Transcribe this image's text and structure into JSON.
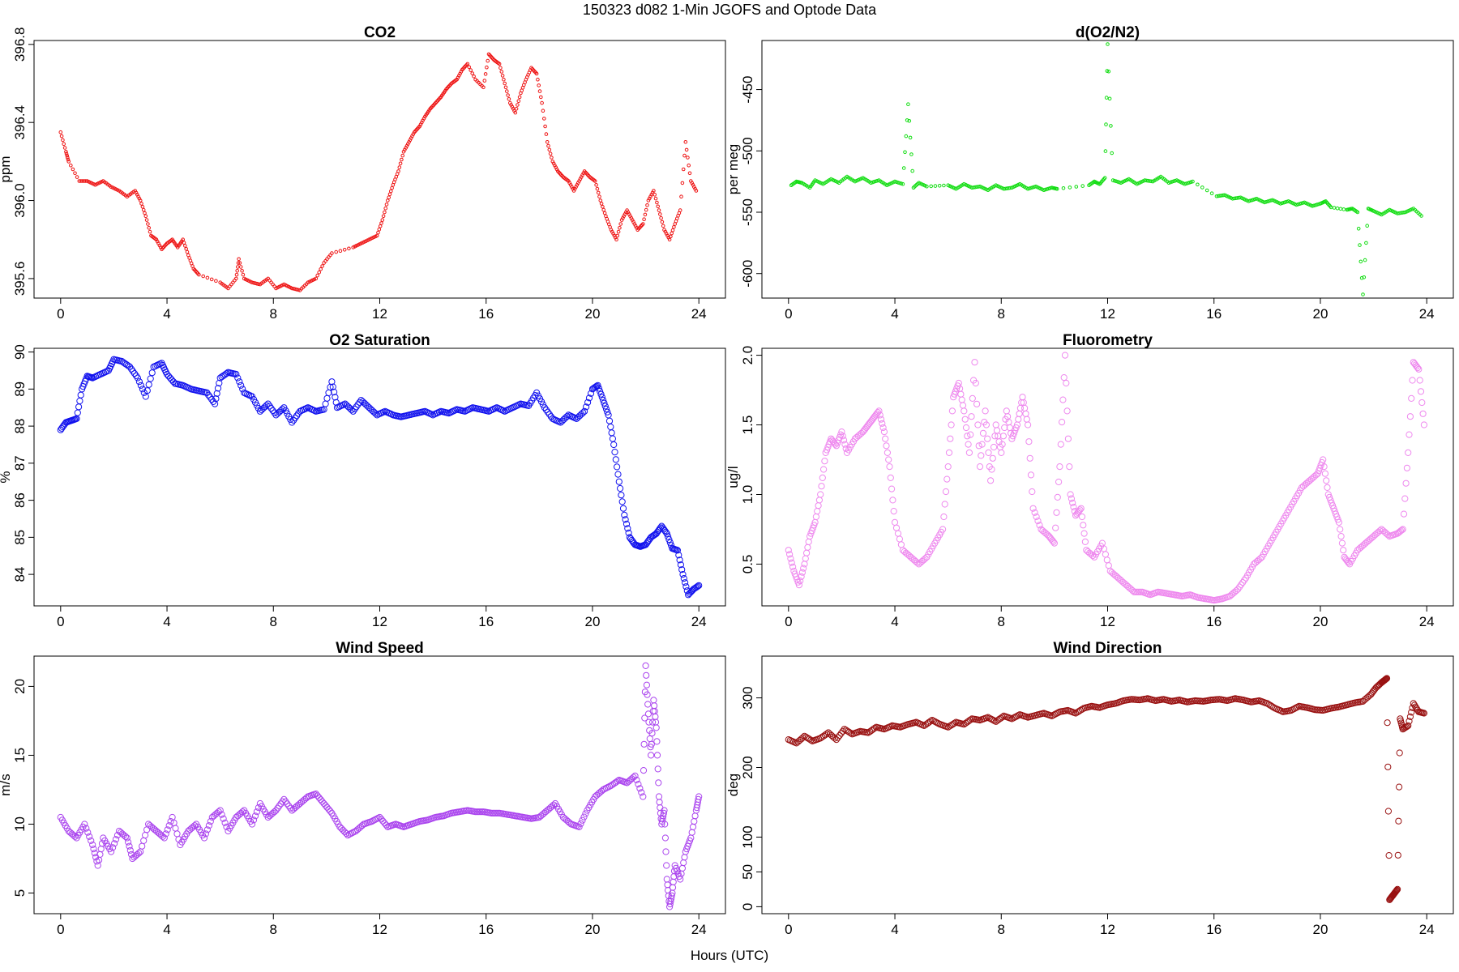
{
  "suptitle": "150323   d082   1-Min  JGOFS and Optode Data",
  "xlabel": "Hours (UTC)",
  "chart_data": [
    {
      "type": "scatter",
      "title": "CO2",
      "xlabel": "",
      "ylabel": "ppm",
      "color": "#ee1111",
      "xlim": [
        -1,
        25
      ],
      "ylim": [
        395.5,
        396.82
      ],
      "xticks": [
        "0",
        "4",
        "8",
        "12",
        "16",
        "20",
        "24"
      ],
      "yticks": [
        "395.6",
        "396.0",
        "396.4",
        "396.8"
      ],
      "x": [
        0.0,
        0.2,
        0.3,
        0.7,
        1.0,
        1.3,
        1.6,
        1.9,
        2.2,
        2.5,
        2.8,
        3.0,
        3.2,
        3.4,
        3.6,
        3.8,
        4.0,
        4.2,
        4.4,
        4.6,
        4.8,
        5.0,
        5.2,
        6.0,
        6.3,
        6.6,
        6.7,
        6.9,
        7.2,
        7.5,
        7.8,
        8.1,
        8.4,
        8.7,
        9.0,
        9.3,
        9.6,
        9.9,
        10.2,
        11.0,
        11.3,
        11.6,
        11.9,
        12.1,
        12.3,
        12.5,
        12.7,
        12.9,
        13.1,
        13.3,
        13.5,
        13.7,
        13.9,
        14.1,
        14.3,
        14.5,
        14.7,
        14.9,
        15.1,
        15.3,
        15.6,
        15.9,
        16.1,
        16.3,
        16.5,
        16.7,
        16.9,
        17.1,
        17.3,
        17.5,
        17.7,
        17.9,
        18.1,
        18.3,
        18.5,
        18.7,
        18.9,
        19.1,
        19.3,
        19.5,
        19.7,
        19.9,
        20.1,
        20.3,
        20.5,
        20.7,
        20.9,
        21.1,
        21.3,
        21.5,
        21.7,
        21.9,
        22.1,
        22.3,
        22.5,
        22.7,
        22.9,
        23.1,
        23.3,
        23.5,
        23.7,
        23.9
      ],
      "y": [
        396.35,
        396.25,
        396.2,
        396.1,
        396.1,
        396.08,
        396.1,
        396.07,
        396.05,
        396.02,
        396.05,
        396.0,
        395.92,
        395.82,
        395.8,
        395.75,
        395.78,
        395.8,
        395.76,
        395.8,
        395.72,
        395.65,
        395.62,
        395.58,
        395.55,
        395.6,
        395.7,
        395.6,
        395.58,
        395.57,
        395.6,
        395.55,
        395.57,
        395.55,
        395.54,
        395.58,
        395.6,
        395.68,
        395.73,
        395.76,
        395.78,
        395.8,
        395.82,
        395.9,
        396.0,
        396.08,
        396.15,
        396.25,
        396.3,
        396.35,
        396.38,
        396.43,
        396.47,
        396.5,
        396.53,
        396.57,
        396.6,
        396.62,
        396.67,
        396.7,
        396.62,
        396.58,
        396.75,
        396.72,
        396.7,
        396.6,
        396.5,
        396.45,
        396.55,
        396.62,
        396.68,
        396.65,
        396.5,
        396.3,
        396.2,
        396.15,
        396.12,
        396.1,
        396.05,
        396.1,
        396.15,
        396.12,
        396.1,
        396.0,
        395.92,
        395.85,
        395.8,
        395.9,
        395.95,
        395.9,
        395.85,
        395.88,
        396.0,
        396.05,
        395.95,
        395.85,
        395.8,
        395.88,
        395.95,
        396.3,
        396.1,
        396.05
      ]
    },
    {
      "type": "scatter",
      "title": "d(O2/N2)",
      "xlabel": "",
      "ylabel": "per meg",
      "color": "#11dd11",
      "xlim": [
        -1,
        25
      ],
      "ylim": [
        -620,
        -410
      ],
      "xticks": [
        "0",
        "4",
        "8",
        "12",
        "16",
        "20",
        "24"
      ],
      "yticks": [
        "-450",
        "-500",
        "-550",
        "-600"
      ],
      "x": [
        0.1,
        0.3,
        0.5,
        0.8,
        1.0,
        1.3,
        1.6,
        1.9,
        2.2,
        2.5,
        2.8,
        3.1,
        3.4,
        3.7,
        4.0,
        4.3,
        4.5,
        4.7,
        4.9,
        5.2,
        6.0,
        6.3,
        6.6,
        6.9,
        7.2,
        7.5,
        7.8,
        8.1,
        8.4,
        8.7,
        9.0,
        9.3,
        9.6,
        9.9,
        10.1,
        11.3,
        11.5,
        11.7,
        11.9,
        12.0,
        12.2,
        12.5,
        12.8,
        13.1,
        13.4,
        13.7,
        14.0,
        14.3,
        14.6,
        14.9,
        15.2,
        16.1,
        16.4,
        16.7,
        17.0,
        17.3,
        17.6,
        17.9,
        18.2,
        18.5,
        18.8,
        19.1,
        19.4,
        19.7,
        20.0,
        20.2,
        20.4,
        21.0,
        21.2,
        21.4,
        21.6,
        21.8,
        22.0,
        22.3,
        22.6,
        22.9,
        23.2,
        23.5,
        23.8
      ],
      "y": [
        -528,
        -525,
        -526,
        -530,
        -524,
        -527,
        -523,
        -526,
        -521,
        -525,
        -522,
        -526,
        -524,
        -528,
        -525,
        -527,
        -462,
        -530,
        -526,
        -529,
        -528,
        -531,
        -527,
        -530,
        -529,
        -532,
        -528,
        -531,
        -530,
        -527,
        -531,
        -529,
        -532,
        -530,
        -531,
        -528,
        -525,
        -527,
        -522,
        -413,
        -524,
        -526,
        -523,
        -527,
        -524,
        -525,
        -521,
        -526,
        -524,
        -527,
        -525,
        -537,
        -536,
        -539,
        -538,
        -541,
        -539,
        -542,
        -540,
        -543,
        -541,
        -544,
        -542,
        -545,
        -543,
        -541,
        -546,
        -548,
        -547,
        -550,
        -617,
        -547,
        -549,
        -552,
        -548,
        -551,
        -550,
        -547,
        -553
      ]
    },
    {
      "type": "scatter",
      "title": "O2 Saturation",
      "xlabel": "",
      "ylabel": "%",
      "color": "#1111ee",
      "xlim": [
        -1,
        25
      ],
      "ylim": [
        83.15,
        90.1
      ],
      "xticks": [
        "0",
        "4",
        "8",
        "12",
        "16",
        "20",
        "24"
      ],
      "yticks": [
        "84",
        "85",
        "86",
        "87",
        "88",
        "89",
        "90"
      ],
      "x": [
        0.0,
        0.2,
        0.4,
        0.6,
        0.8,
        1.0,
        1.2,
        1.5,
        1.8,
        2.0,
        2.3,
        2.6,
        2.9,
        3.2,
        3.5,
        3.8,
        4.0,
        4.3,
        4.6,
        4.9,
        5.2,
        5.5,
        5.8,
        6.0,
        6.3,
        6.6,
        6.9,
        7.2,
        7.5,
        7.8,
        8.1,
        8.4,
        8.7,
        9.0,
        9.3,
        9.6,
        9.9,
        10.2,
        10.4,
        10.7,
        11.0,
        11.3,
        11.6,
        11.9,
        12.2,
        12.5,
        12.8,
        13.1,
        13.4,
        13.7,
        14.0,
        14.3,
        14.6,
        14.9,
        15.2,
        15.5,
        15.8,
        16.1,
        16.4,
        16.7,
        17.0,
        17.3,
        17.6,
        17.9,
        18.2,
        18.5,
        18.8,
        19.1,
        19.4,
        19.7,
        20.0,
        20.2,
        20.4,
        20.6,
        20.8,
        21.0,
        21.2,
        21.4,
        21.6,
        21.8,
        22.0,
        22.2,
        22.4,
        22.6,
        22.8,
        23.0,
        23.2,
        23.4,
        23.6,
        23.8,
        24.0
      ],
      "y": [
        87.9,
        88.1,
        88.15,
        88.2,
        89.0,
        89.35,
        89.3,
        89.4,
        89.5,
        89.8,
        89.75,
        89.6,
        89.3,
        88.8,
        89.6,
        89.7,
        89.4,
        89.15,
        89.1,
        89.0,
        88.95,
        88.9,
        88.6,
        89.3,
        89.45,
        89.4,
        88.9,
        88.8,
        88.4,
        88.6,
        88.3,
        88.5,
        88.1,
        88.4,
        88.5,
        88.4,
        88.45,
        89.2,
        88.5,
        88.6,
        88.4,
        88.7,
        88.5,
        88.3,
        88.4,
        88.3,
        88.25,
        88.3,
        88.35,
        88.4,
        88.3,
        88.4,
        88.35,
        88.45,
        88.4,
        88.5,
        88.45,
        88.4,
        88.5,
        88.4,
        88.5,
        88.6,
        88.55,
        88.9,
        88.5,
        88.2,
        88.1,
        88.3,
        88.2,
        88.4,
        89.0,
        89.1,
        88.7,
        88.3,
        87.5,
        86.5,
        85.6,
        85.0,
        84.8,
        84.75,
        84.8,
        85.0,
        85.1,
        85.3,
        85.1,
        84.7,
        84.65,
        84.0,
        83.45,
        83.6,
        83.7
      ]
    },
    {
      "type": "scatter",
      "title": "Fluorometry",
      "xlabel": "",
      "ylabel": "ug/l",
      "color": "#ee88ee",
      "xlim": [
        -1,
        25
      ],
      "ylim": [
        0.2,
        2.05
      ],
      "xticks": [
        "0",
        "4",
        "8",
        "12",
        "16",
        "20",
        "24"
      ],
      "yticks": [
        "0.5",
        "1.0",
        "1.5",
        "2.0"
      ],
      "x": [
        0.0,
        0.2,
        0.4,
        0.6,
        0.8,
        1.0,
        1.2,
        1.4,
        1.6,
        1.8,
        2.0,
        2.2,
        2.5,
        2.8,
        3.0,
        3.2,
        3.4,
        3.6,
        3.8,
        4.0,
        4.3,
        4.6,
        4.9,
        5.2,
        5.5,
        5.8,
        6.0,
        6.2,
        6.4,
        6.6,
        6.8,
        7.0,
        7.2,
        7.4,
        7.6,
        7.8,
        8.0,
        8.2,
        8.4,
        8.6,
        8.8,
        9.0,
        9.2,
        9.5,
        9.8,
        10.0,
        10.2,
        10.4,
        10.6,
        10.8,
        11.0,
        11.2,
        11.5,
        11.8,
        12.1,
        12.4,
        12.7,
        13.0,
        13.3,
        13.6,
        13.9,
        14.2,
        14.5,
        14.8,
        15.1,
        15.4,
        15.7,
        16.0,
        16.3,
        16.6,
        16.9,
        17.2,
        17.5,
        17.8,
        18.1,
        18.4,
        18.7,
        19.0,
        19.3,
        19.6,
        19.9,
        20.1,
        20.3,
        20.5,
        20.7,
        20.9,
        21.1,
        21.4,
        21.7,
        22.0,
        22.3,
        22.6,
        22.9,
        23.1,
        23.3,
        23.5,
        23.7,
        23.9
      ],
      "y": [
        0.6,
        0.45,
        0.35,
        0.5,
        0.7,
        0.8,
        1.0,
        1.3,
        1.4,
        1.35,
        1.45,
        1.3,
        1.4,
        1.45,
        1.5,
        1.55,
        1.6,
        1.45,
        1.2,
        0.8,
        0.6,
        0.55,
        0.5,
        0.55,
        0.65,
        0.75,
        1.2,
        1.7,
        1.8,
        1.6,
        1.3,
        1.95,
        1.2,
        1.6,
        1.1,
        1.5,
        1.3,
        1.6,
        1.4,
        1.5,
        1.7,
        1.5,
        0.9,
        0.75,
        0.7,
        0.65,
        1.2,
        2.0,
        1.0,
        0.85,
        0.9,
        0.6,
        0.55,
        0.65,
        0.45,
        0.4,
        0.35,
        0.3,
        0.3,
        0.28,
        0.3,
        0.29,
        0.28,
        0.27,
        0.28,
        0.26,
        0.25,
        0.24,
        0.25,
        0.27,
        0.32,
        0.4,
        0.5,
        0.55,
        0.65,
        0.75,
        0.85,
        0.95,
        1.05,
        1.1,
        1.15,
        1.25,
        1.0,
        0.9,
        0.8,
        0.55,
        0.5,
        0.6,
        0.65,
        0.7,
        0.75,
        0.7,
        0.72,
        0.75,
        1.3,
        1.95,
        1.9,
        1.5
      ]
    },
    {
      "type": "scatter",
      "title": "Wind Speed",
      "xlabel": "",
      "ylabel": "m/s",
      "color": "#aa44ee",
      "xlim": [
        -1,
        25
      ],
      "ylim": [
        3.5,
        22.2
      ],
      "xticks": [
        "0",
        "4",
        "8",
        "12",
        "16",
        "20",
        "24"
      ],
      "yticks": [
        "5",
        "10",
        "15",
        "20"
      ],
      "x": [
        0.0,
        0.3,
        0.6,
        0.9,
        1.2,
        1.4,
        1.6,
        1.9,
        2.2,
        2.5,
        2.7,
        3.0,
        3.3,
        3.6,
        3.9,
        4.2,
        4.5,
        4.8,
        5.1,
        5.4,
        5.7,
        6.0,
        6.3,
        6.6,
        6.9,
        7.2,
        7.5,
        7.8,
        8.1,
        8.4,
        8.7,
        9.0,
        9.3,
        9.6,
        9.9,
        10.2,
        10.5,
        10.8,
        11.1,
        11.4,
        11.7,
        12.0,
        12.3,
        12.6,
        12.9,
        13.2,
        13.5,
        13.8,
        14.1,
        14.4,
        14.7,
        15.0,
        15.3,
        15.6,
        15.9,
        16.2,
        16.5,
        16.8,
        17.1,
        17.4,
        17.7,
        18.0,
        18.3,
        18.6,
        18.9,
        19.2,
        19.5,
        19.8,
        20.1,
        20.4,
        20.7,
        21.0,
        21.3,
        21.6,
        21.9,
        22.0,
        22.1,
        22.2,
        22.3,
        22.4,
        22.5,
        22.6,
        22.7,
        22.8,
        22.9,
        23.0,
        23.1,
        23.3,
        23.5,
        23.7,
        23.9,
        24.0
      ],
      "y": [
        10.5,
        9.5,
        9.0,
        10.0,
        8.5,
        7.0,
        9.0,
        8.0,
        9.5,
        9.0,
        7.5,
        8.0,
        10.0,
        9.5,
        9.0,
        10.5,
        8.5,
        9.5,
        10.0,
        9.0,
        10.5,
        11.0,
        9.5,
        10.5,
        11.0,
        10.0,
        11.5,
        10.5,
        11.0,
        11.8,
        11.0,
        11.5,
        12.0,
        12.2,
        11.5,
        10.8,
        9.8,
        9.2,
        9.5,
        10.0,
        10.2,
        10.5,
        9.8,
        10.0,
        9.8,
        10.0,
        10.2,
        10.3,
        10.5,
        10.6,
        10.8,
        10.9,
        11.0,
        10.9,
        10.9,
        10.8,
        10.8,
        10.7,
        10.6,
        10.5,
        10.4,
        10.5,
        11.0,
        11.5,
        10.5,
        10.0,
        9.8,
        11.0,
        12.0,
        12.5,
        12.8,
        13.2,
        13.0,
        13.5,
        12.0,
        21.5,
        18.0,
        15.0,
        19.0,
        17.0,
        12.0,
        10.0,
        11.0,
        6.0,
        4.0,
        5.0,
        7.0,
        6.0,
        8.0,
        9.0,
        11.0,
        12.0
      ]
    },
    {
      "type": "scatter",
      "title": "Wind Direction",
      "xlabel": "",
      "ylabel": "deg",
      "color": "#991111",
      "xlim": [
        -1,
        25
      ],
      "ylim": [
        -10,
        360
      ],
      "xticks": [
        "0",
        "4",
        "8",
        "12",
        "16",
        "20",
        "24"
      ],
      "yticks": [
        "0",
        "50",
        "100",
        "200",
        "300"
      ],
      "x": [
        0.0,
        0.3,
        0.6,
        0.9,
        1.2,
        1.5,
        1.8,
        2.1,
        2.4,
        2.7,
        3.0,
        3.3,
        3.6,
        3.9,
        4.2,
        4.5,
        4.8,
        5.1,
        5.4,
        5.7,
        6.0,
        6.3,
        6.6,
        6.9,
        7.2,
        7.5,
        7.8,
        8.1,
        8.4,
        8.7,
        9.0,
        9.3,
        9.6,
        9.9,
        10.2,
        10.5,
        10.8,
        11.1,
        11.4,
        11.7,
        12.0,
        12.3,
        12.6,
        12.9,
        13.2,
        13.5,
        13.8,
        14.1,
        14.4,
        14.7,
        15.0,
        15.3,
        15.6,
        15.9,
        16.2,
        16.5,
        16.8,
        17.1,
        17.4,
        17.7,
        18.0,
        18.3,
        18.6,
        18.9,
        19.2,
        19.5,
        19.8,
        20.1,
        20.4,
        20.7,
        21.0,
        21.3,
        21.6,
        21.9,
        22.1,
        22.3,
        22.4,
        22.5,
        22.6,
        22.7,
        22.8,
        22.9,
        23.0,
        23.1,
        23.3,
        23.5,
        23.7,
        23.9
      ],
      "y": [
        240,
        235,
        245,
        238,
        242,
        250,
        240,
        255,
        248,
        252,
        250,
        258,
        255,
        260,
        258,
        262,
        265,
        260,
        268,
        262,
        258,
        265,
        262,
        270,
        268,
        272,
        266,
        274,
        270,
        276,
        272,
        275,
        278,
        274,
        280,
        282,
        278,
        285,
        288,
        286,
        290,
        292,
        296,
        298,
        297,
        299,
        296,
        298,
        295,
        297,
        294,
        296,
        295,
        297,
        298,
        296,
        299,
        297,
        294,
        296,
        292,
        285,
        280,
        282,
        288,
        286,
        283,
        282,
        285,
        287,
        290,
        293,
        295,
        305,
        315,
        322,
        325,
        328,
        10,
        15,
        20,
        25,
        270,
        255,
        260,
        292,
        280,
        278
      ]
    }
  ]
}
